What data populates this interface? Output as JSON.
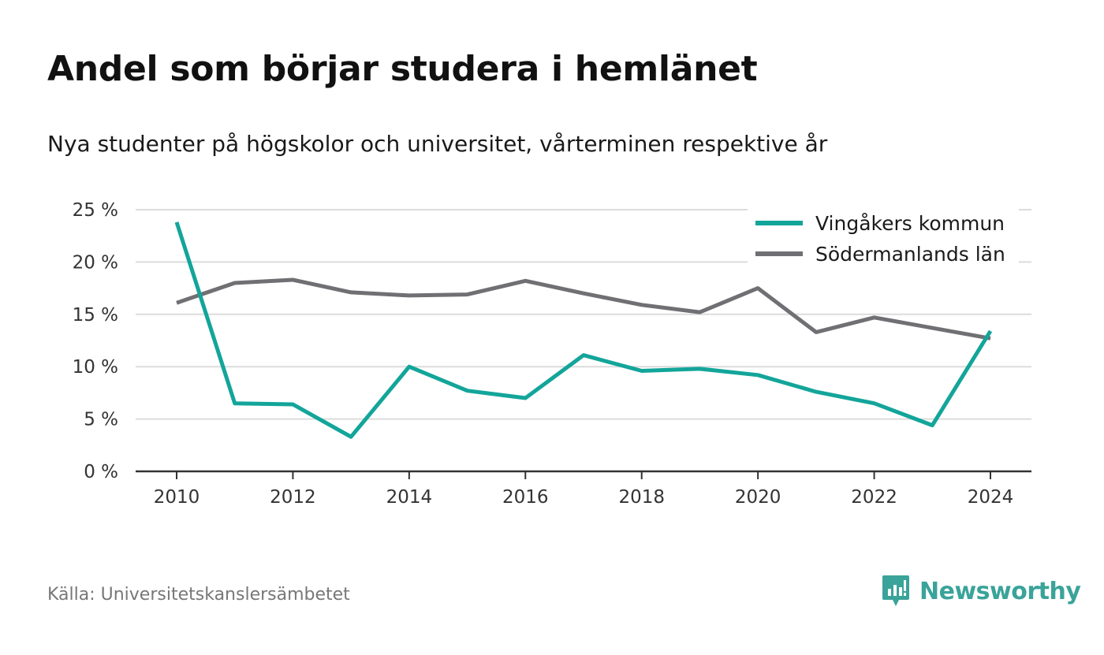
{
  "chart_data": {
    "type": "line",
    "title": "Andel som börjar studera i hemlänet",
    "subtitle": "Nya studenter på högskolor och universitet, vårterminen respektive år",
    "x": [
      2010,
      2011,
      2012,
      2013,
      2014,
      2015,
      2016,
      2017,
      2018,
      2019,
      2020,
      2021,
      2022,
      2023,
      2024
    ],
    "series": [
      {
        "name": "Vingåkers kommun",
        "color": "#13a59a",
        "values": [
          23.8,
          6.5,
          6.4,
          3.3,
          10.0,
          7.7,
          7.0,
          11.1,
          9.6,
          9.8,
          9.2,
          7.6,
          6.5,
          4.4,
          13.4
        ]
      },
      {
        "name": "Södermanlands län",
        "color": "#707074",
        "values": [
          16.1,
          18.0,
          18.3,
          17.1,
          16.8,
          16.9,
          18.2,
          17.0,
          15.9,
          15.2,
          17.5,
          13.3,
          14.7,
          13.7,
          12.7
        ]
      }
    ],
    "ylim": [
      0,
      25
    ],
    "yticks": [
      0,
      5,
      10,
      15,
      20,
      25
    ],
    "ytick_labels": [
      "0 %",
      "5 %",
      "10 %",
      "15 %",
      "20 %",
      "25 %"
    ],
    "xticks": [
      2010,
      2012,
      2014,
      2016,
      2018,
      2020,
      2022,
      2024
    ],
    "xtick_labels": [
      "2010",
      "2012",
      "2014",
      "2016",
      "2018",
      "2020",
      "2022",
      "2024"
    ],
    "xlabel": "",
    "ylabel": "",
    "grid": true,
    "legend_position": "top-right"
  },
  "source": "Källa: Universitetskanslersämbetet",
  "brand": {
    "name": "Newsworthy",
    "color": "#3aa39a",
    "icon": "newsworthy-logo-icon"
  }
}
